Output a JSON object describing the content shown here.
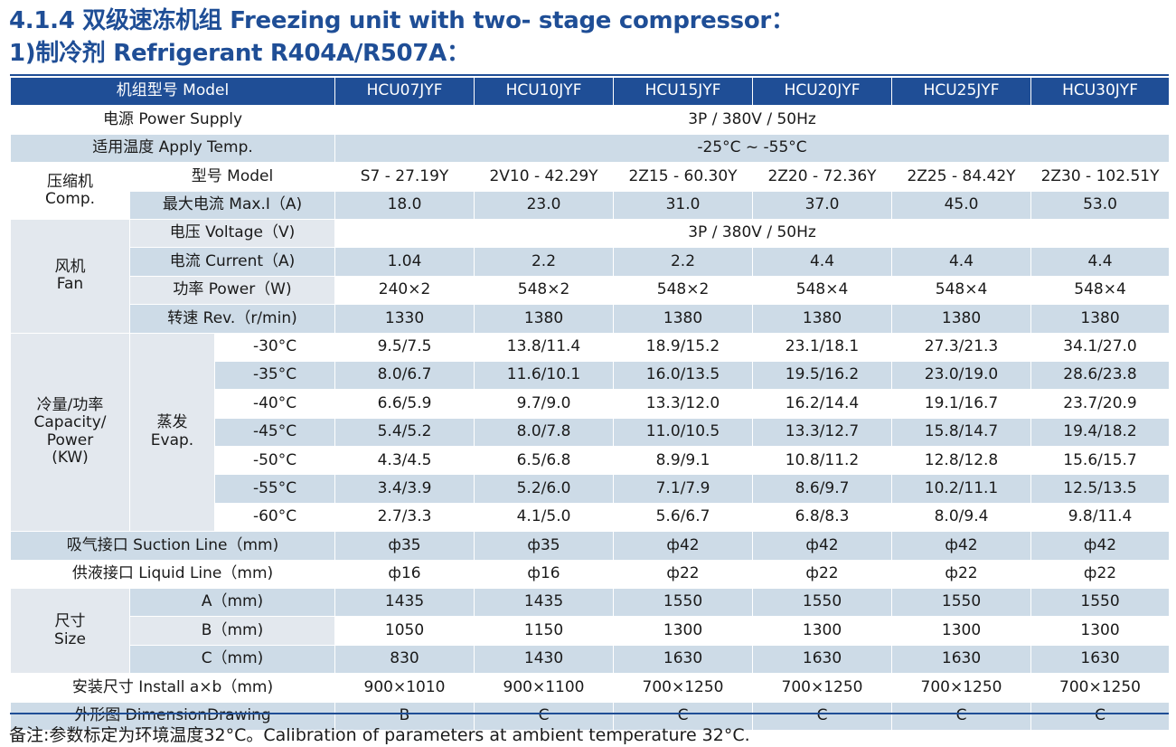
{
  "heading": {
    "line1": "4.1.4 双级速冻机组 Freezing unit with two- stage compressor：",
    "line2": "1)制冷剂 Refrigerant  R404A/R507A："
  },
  "colors": {
    "accent": "#1f4e96",
    "band": "#cddbe7",
    "label_bg": "#e3e8ee"
  },
  "table": {
    "header_label": "机组型号 Model",
    "models": [
      "HCU07JYF",
      "HCU10JYF",
      "HCU15JYF",
      "HCU20JYF",
      "HCU25JYF",
      "HCU30JYF"
    ],
    "power_supply": {
      "label": "电源 Power Supply",
      "value": "3P / 380V / 50Hz"
    },
    "apply_temp": {
      "label": "适用温度 Apply Temp.",
      "value": "-25°C ~ -55°C"
    },
    "compressor": {
      "group_cn": "压缩机",
      "group_en": "Comp.",
      "model_label": "型号 Model",
      "models": [
        "S7 - 27.19Y",
        "2V10 - 42.29Y",
        "2Z15 - 60.30Y",
        "2Z20 - 72.36Y",
        "2Z25 - 84.42Y",
        "2Z30 - 102.51Y"
      ],
      "maxi_label": "最大电流 Max.I（A)",
      "maxi": [
        "18.0",
        "23.0",
        "31.0",
        "37.0",
        "45.0",
        "53.0"
      ]
    },
    "fan": {
      "group_cn": "风机",
      "group_en": "Fan",
      "voltage_label": "电压 Voltage（V)",
      "voltage": "3P / 380V / 50Hz",
      "current_label": "电流 Current（A)",
      "current": [
        "1.04",
        "2.2",
        "2.2",
        "4.4",
        "4.4",
        "4.4"
      ],
      "power_label": "功率 Power（W)",
      "power": [
        "240×2",
        "548×2",
        "548×2",
        "548×4",
        "548×4",
        "548×4"
      ],
      "rev_label": "转速 Rev.（r/min)",
      "rev": [
        "1330",
        "1380",
        "1380",
        "1380",
        "1380",
        "1380"
      ]
    },
    "capacity": {
      "group_lines": [
        "冷量/功率",
        "Capacity/",
        "Power",
        "(KW)"
      ],
      "evap_cn": "蒸发",
      "evap_en": "Evap.",
      "rows": [
        {
          "temp": "-30°C",
          "values": [
            "9.5/7.5",
            "13.8/11.4",
            "18.9/15.2",
            "23.1/18.1",
            "27.3/21.3",
            "34.1/27.0"
          ]
        },
        {
          "temp": "-35°C",
          "values": [
            "8.0/6.7",
            "11.6/10.1",
            "16.0/13.5",
            "19.5/16.2",
            "23.0/19.0",
            "28.6/23.8"
          ]
        },
        {
          "temp": "-40°C",
          "values": [
            "6.6/5.9",
            "9.7/9.0",
            "13.3/12.0",
            "16.2/14.4",
            "19.1/16.7",
            "23.7/20.9"
          ]
        },
        {
          "temp": "-45°C",
          "values": [
            "5.4/5.2",
            "8.0/7.8",
            "11.0/10.5",
            "13.3/12.7",
            "15.8/14.7",
            "19.4/18.2"
          ]
        },
        {
          "temp": "-50°C",
          "values": [
            "4.3/4.5",
            "6.5/6.8",
            "8.9/9.1",
            "10.8/11.2",
            "12.8/12.8",
            "15.6/15.7"
          ]
        },
        {
          "temp": "-55°C",
          "values": [
            "3.4/3.9",
            "5.2/6.0",
            "7.1/7.9",
            "8.6/9.7",
            "10.2/11.1",
            "12.5/13.5"
          ]
        },
        {
          "temp": "-60°C",
          "values": [
            "2.7/3.3",
            "4.1/5.0",
            "5.6/6.7",
            "6.8/8.3",
            "8.0/9.4",
            "9.8/11.4"
          ]
        }
      ]
    },
    "suction": {
      "label": "吸气接口 Suction Line（mm)",
      "values": [
        "ф35",
        "ф35",
        "ф42",
        "ф42",
        "ф42",
        "ф42"
      ]
    },
    "liquid": {
      "label": "供液接口 Liquid Line（mm)",
      "values": [
        "ф16",
        "ф16",
        "ф22",
        "ф22",
        "ф22",
        "ф22"
      ]
    },
    "size": {
      "group_cn": "尺寸",
      "group_en": "Size",
      "rows": [
        {
          "label": "A（mm)",
          "values": [
            "1435",
            "1435",
            "1550",
            "1550",
            "1550",
            "1550"
          ]
        },
        {
          "label": "B（mm)",
          "values": [
            "1050",
            "1150",
            "1300",
            "1300",
            "1300",
            "1300"
          ]
        },
        {
          "label": "C（mm)",
          "values": [
            "830",
            "1430",
            "1630",
            "1630",
            "1630",
            "1630"
          ]
        }
      ]
    },
    "install": {
      "label": "安装尺寸 Install a×b（mm)",
      "values": [
        "900×1010",
        "900×1100",
        "700×1250",
        "700×1250",
        "700×1250",
        "700×1250"
      ]
    },
    "drawing": {
      "label": "外形图 DimensionDrawing",
      "values": [
        "B",
        "C",
        "C",
        "C",
        "C",
        "C"
      ]
    }
  },
  "note": "备注:参数标定为环境温度32°C。Calibration of parameters at ambient temperature 32°C."
}
